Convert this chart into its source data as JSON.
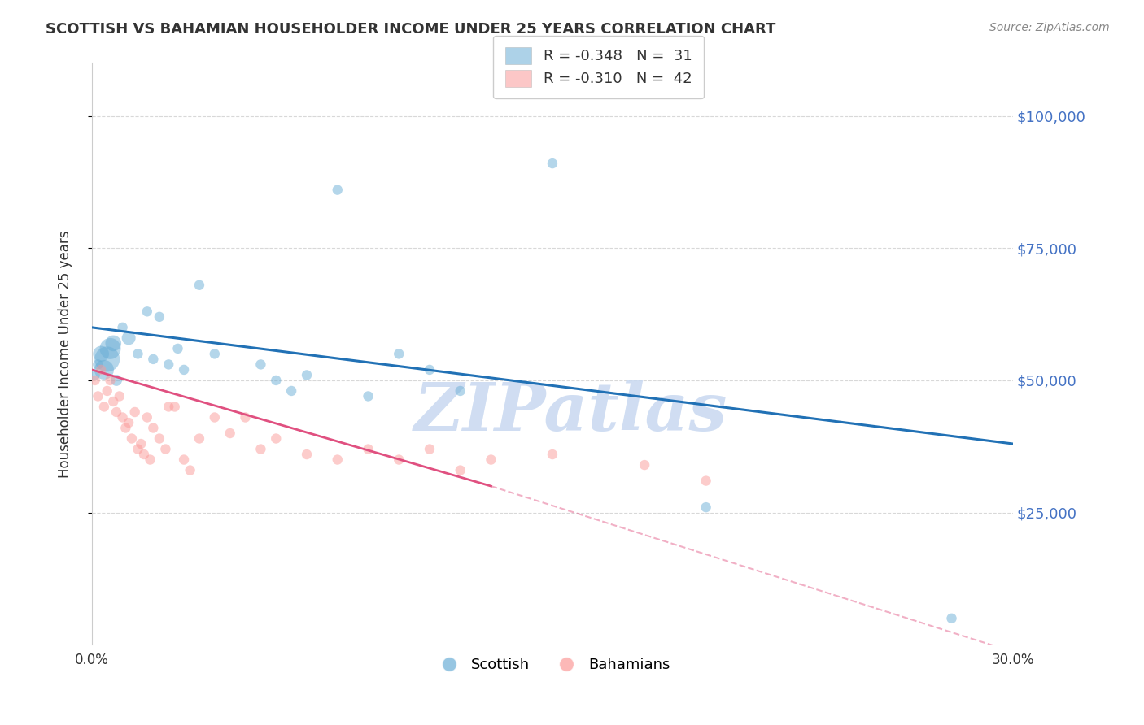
{
  "title": "SCOTTISH VS BAHAMIAN HOUSEHOLDER INCOME UNDER 25 YEARS CORRELATION CHART",
  "source": "Source: ZipAtlas.com",
  "ylabel": "Householder Income Under 25 years",
  "ytick_values": [
    25000,
    50000,
    75000,
    100000
  ],
  "xlim": [
    0.0,
    0.3
  ],
  "ylim": [
    0,
    110000
  ],
  "watermark": "ZIPatlas",
  "legend_blue_r": "-0.348",
  "legend_blue_n": "31",
  "legend_pink_r": "-0.310",
  "legend_pink_n": "42",
  "blue_scatter": {
    "x": [
      0.001,
      0.002,
      0.003,
      0.004,
      0.005,
      0.006,
      0.007,
      0.008,
      0.01,
      0.012,
      0.015,
      0.018,
      0.02,
      0.022,
      0.025,
      0.028,
      0.03,
      0.035,
      0.04,
      0.055,
      0.06,
      0.065,
      0.07,
      0.08,
      0.09,
      0.1,
      0.11,
      0.12,
      0.15,
      0.2,
      0.28
    ],
    "y": [
      51000,
      53000,
      55000,
      52000,
      54000,
      56000,
      57000,
      50000,
      60000,
      58000,
      55000,
      63000,
      54000,
      62000,
      53000,
      56000,
      52000,
      68000,
      55000,
      53000,
      50000,
      48000,
      51000,
      86000,
      47000,
      55000,
      52000,
      48000,
      91000,
      26000,
      5000
    ],
    "size": [
      80,
      80,
      200,
      300,
      500,
      350,
      200,
      100,
      80,
      150,
      80,
      80,
      80,
      80,
      80,
      80,
      80,
      80,
      80,
      80,
      80,
      80,
      80,
      80,
      80,
      80,
      80,
      80,
      80,
      80,
      80
    ]
  },
  "pink_scatter": {
    "x": [
      0.001,
      0.002,
      0.003,
      0.004,
      0.005,
      0.006,
      0.007,
      0.008,
      0.009,
      0.01,
      0.011,
      0.012,
      0.013,
      0.014,
      0.015,
      0.016,
      0.017,
      0.018,
      0.019,
      0.02,
      0.022,
      0.024,
      0.025,
      0.027,
      0.03,
      0.032,
      0.035,
      0.04,
      0.045,
      0.05,
      0.055,
      0.06,
      0.07,
      0.08,
      0.09,
      0.1,
      0.11,
      0.12,
      0.13,
      0.15,
      0.18,
      0.2
    ],
    "y": [
      50000,
      47000,
      52000,
      45000,
      48000,
      50000,
      46000,
      44000,
      47000,
      43000,
      41000,
      42000,
      39000,
      44000,
      37000,
      38000,
      36000,
      43000,
      35000,
      41000,
      39000,
      37000,
      45000,
      45000,
      35000,
      33000,
      39000,
      43000,
      40000,
      43000,
      37000,
      39000,
      36000,
      35000,
      37000,
      35000,
      37000,
      33000,
      35000,
      36000,
      34000,
      31000
    ],
    "size": [
      80,
      80,
      80,
      80,
      80,
      80,
      80,
      80,
      80,
      80,
      80,
      80,
      80,
      80,
      80,
      80,
      80,
      80,
      80,
      80,
      80,
      80,
      80,
      80,
      80,
      80,
      80,
      80,
      80,
      80,
      80,
      80,
      80,
      80,
      80,
      80,
      80,
      80,
      80,
      80,
      80,
      80
    ]
  },
  "blue_line": {
    "x": [
      0.0,
      0.3
    ],
    "y": [
      60000,
      38000
    ]
  },
  "pink_line_solid": {
    "x": [
      0.0,
      0.13
    ],
    "y": [
      52000,
      30000
    ]
  },
  "pink_line_dashed": {
    "x": [
      0.13,
      0.32
    ],
    "y": [
      30000,
      -5000
    ]
  },
  "blue_color": "#6baed6",
  "pink_color": "#fb9a99",
  "blue_line_color": "#2171b5",
  "pink_line_color": "#e05080",
  "grid_color": "#d8d8d8",
  "title_color": "#333333",
  "right_tick_color": "#4472c4",
  "watermark_color": "#c8d8f0",
  "source_color": "#888888"
}
